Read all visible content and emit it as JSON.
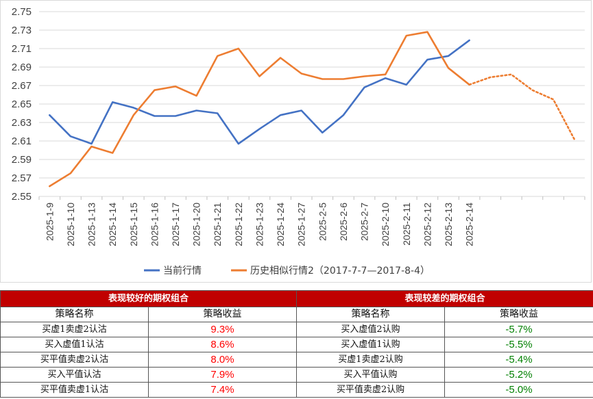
{
  "chart_data": {
    "type": "line",
    "ylim": [
      2.55,
      2.75
    ],
    "yticks": [
      "2.75",
      "2.73",
      "2.71",
      "2.69",
      "2.67",
      "2.65",
      "2.63",
      "2.61",
      "2.59",
      "2.57",
      "2.55"
    ],
    "categories": [
      "2025-1-9",
      "2025-1-10",
      "2025-1-13",
      "2025-1-14",
      "2025-1-15",
      "2025-1-16",
      "2025-1-17",
      "2025-1-20",
      "2025-1-21",
      "2025-1-22",
      "2025-1-23",
      "2025-1-24",
      "2025-1-27",
      "2025-2-5",
      "2025-2-6",
      "2025-2-7",
      "2025-2-10",
      "2025-2-11",
      "2025-2-12",
      "2025-2-13",
      "2025-2-14"
    ],
    "series": [
      {
        "name": "当前行情",
        "color": "#4472c4",
        "values": [
          2.638,
          2.615,
          2.607,
          2.652,
          2.646,
          2.637,
          2.637,
          2.643,
          2.64,
          2.607,
          2.623,
          2.638,
          2.643,
          2.619,
          2.638,
          2.668,
          2.678,
          2.671,
          2.698,
          2.702,
          2.719
        ]
      },
      {
        "name": "历史相似行情2（2017-7-7—2017-8-4）",
        "color": "#ed7d31",
        "values": [
          2.561,
          2.575,
          2.604,
          2.597,
          2.638,
          2.665,
          2.669,
          2.659,
          2.702,
          2.71,
          2.68,
          2.7,
          2.683,
          2.677,
          2.677,
          2.68,
          2.682,
          2.724,
          2.728,
          2.689,
          2.671
        ],
        "dotted_extension": [
          2.671,
          2.679,
          2.682,
          2.665,
          2.655,
          2.612
        ]
      }
    ]
  },
  "tables": {
    "good": {
      "title": "表现较好的期权组合",
      "col_name": "策略名称",
      "col_return": "策略收益",
      "rows": [
        {
          "name": "买虚1卖虚2认沽",
          "ret": "9.3%"
        },
        {
          "name": "买入虚值1认沽",
          "ret": "8.6%"
        },
        {
          "name": "买平值卖虚2认沽",
          "ret": "8.0%"
        },
        {
          "name": "买入平值认沽",
          "ret": "7.9%"
        },
        {
          "name": "买平值卖虚1认沽",
          "ret": "7.4%"
        }
      ]
    },
    "bad": {
      "title": "表现较差的期权组合",
      "col_name": "策略名称",
      "col_return": "策略收益",
      "rows": [
        {
          "name": "买入虚值2认购",
          "ret": "-5.7%"
        },
        {
          "name": "买入虚值1认购",
          "ret": "-5.5%"
        },
        {
          "name": "买虚1卖虚2认购",
          "ret": "-5.4%"
        },
        {
          "name": "买入平值认购",
          "ret": "-5.2%"
        },
        {
          "name": "买平值卖虚2认购",
          "ret": "-5.0%"
        }
      ]
    }
  }
}
